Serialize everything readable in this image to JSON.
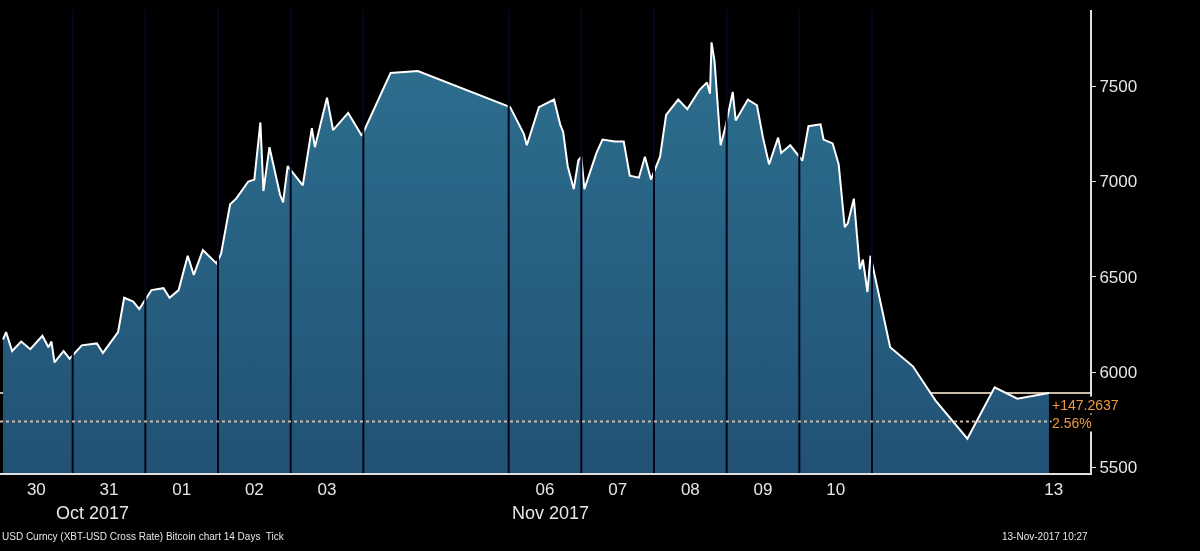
{
  "chart_data": {
    "type": "area",
    "x": [
      "2017-10-30T01:00",
      "2017-10-30T02:00",
      "2017-10-30T04:00",
      "2017-10-30T07:00",
      "2017-10-30T10:00",
      "2017-10-30T14:00",
      "2017-10-30T16:00",
      "2017-10-30T17:00",
      "2017-10-30T18:00",
      "2017-10-30T21:00",
      "2017-10-30T23:00",
      "2017-10-31T03:00",
      "2017-10-31T08:00",
      "2017-10-31T10:00",
      "2017-10-31T15:00",
      "2017-10-31T17:00",
      "2017-10-31T20:00",
      "2017-10-31T22:00",
      "2017-11-01T02:00",
      "2017-11-01T06:00",
      "2017-11-01T08:00",
      "2017-11-01T11:00",
      "2017-11-01T14:00",
      "2017-11-01T16:00",
      "2017-11-01T19:00",
      "2017-11-01T23:30",
      "2017-11-02T01:00",
      "2017-11-02T04:00",
      "2017-11-02T06:00",
      "2017-11-02T10:00",
      "2017-11-02T12:00",
      "2017-11-02T14:00",
      "2017-11-02T15:00",
      "2017-11-02T17:00",
      "2017-11-02T20:30",
      "2017-11-02T21:30",
      "2017-11-02T23:00",
      "2017-11-03T04:00",
      "2017-11-03T07:00",
      "2017-11-03T08:00",
      "2017-11-03T12:00",
      "2017-11-03T14:00",
      "2017-11-03T19:00",
      "2017-11-03T23:30",
      "2017-11-04T09:00",
      "2017-11-04T18:00",
      "2017-11-06T00:30",
      "2017-11-06T05:00",
      "2017-11-06T06:00",
      "2017-11-06T10:00",
      "2017-11-06T15:00",
      "2017-11-06T17:00",
      "2017-11-06T18:00",
      "2017-11-06T19:30",
      "2017-11-06T21:30",
      "2017-11-06T23:00",
      "2017-11-07T00:00",
      "2017-11-07T01:00",
      "2017-11-07T05:00",
      "2017-11-07T07:00",
      "2017-11-07T11:00",
      "2017-11-07T14:00",
      "2017-11-07T16:00",
      "2017-11-07T19:00",
      "2017-11-07T21:00",
      "2017-11-07T23:00",
      "2017-11-08T02:00",
      "2017-11-08T04:00",
      "2017-11-08T08:00",
      "2017-11-08T11:00",
      "2017-11-08T15:00",
      "2017-11-08T17:30",
      "2017-11-08T18:30",
      "2017-11-08T19:00",
      "2017-11-08T20:00",
      "2017-11-08T22:00",
      "2017-11-08T23:30",
      "2017-11-09T02:00",
      "2017-11-09T03:00",
      "2017-11-09T07:00",
      "2017-11-09T10:00",
      "2017-11-09T12:00",
      "2017-11-09T14:00",
      "2017-11-09T17:00",
      "2017-11-09T18:00",
      "2017-11-09T21:00",
      "2017-11-10T01:00",
      "2017-11-10T03:00",
      "2017-11-10T07:00",
      "2017-11-10T08:00",
      "2017-11-10T11:00",
      "2017-11-10T13:00",
      "2017-11-10T15:00",
      "2017-11-10T16:00",
      "2017-11-10T18:00",
      "2017-11-10T20:00",
      "2017-11-10T21:00",
      "2017-11-10T22:30",
      "2017-11-10T23:30",
      "2017-11-11T06:00",
      "2017-11-11T13:30",
      "2017-11-11T21:00",
      "2017-11-12T07:30",
      "2017-11-12T16:30",
      "2017-11-13T00:00",
      "2017-11-13T10:27"
    ],
    "series": [
      {
        "color": "#ffffff",
        "values": [
          6170,
          6210,
          6110,
          6160,
          6120,
          6190,
          6130,
          6160,
          6050,
          6110,
          6070,
          6140,
          6150,
          6100,
          6210,
          6390,
          6370,
          6330,
          6430,
          6440,
          6390,
          6430,
          6610,
          6510,
          6640,
          6570,
          6620,
          6880,
          6910,
          7000,
          7010,
          7310,
          6950,
          7180,
          6930,
          6890,
          7080,
          6980,
          7280,
          7180,
          7440,
          7270,
          7360,
          7240,
          7570,
          7580,
          7390,
          7250,
          7190,
          7390,
          7430,
          7300,
          7260,
          7080,
          6960,
          7110,
          7130,
          6960,
          7150,
          7220,
          7210,
          7210,
          7030,
          7020,
          7130,
          7010,
          7130,
          7350,
          7430,
          7380,
          7480,
          7520,
          7460,
          7730,
          7630,
          7190,
          7280,
          7470,
          7320,
          7430,
          7400,
          7230,
          7090,
          7230,
          7150,
          7190,
          7110,
          7290,
          7300,
          7220,
          7200,
          7090,
          6760,
          6780,
          6910,
          6540,
          6590,
          6420,
          6610,
          6130,
          6030,
          5850,
          5650,
          5920,
          5860,
          5890
        ]
      }
    ],
    "xlim": [
      "2017-10-30",
      "2017-11-14"
    ],
    "xticks": [
      {
        "value": "2017-10-30T12:00",
        "label": "30"
      },
      {
        "value": "2017-10-31T12:00",
        "label": "31"
      },
      {
        "value": "2017-11-01T12:00",
        "label": "01"
      },
      {
        "value": "2017-11-02T12:00",
        "label": "02"
      },
      {
        "value": "2017-11-03T12:00",
        "label": "03"
      },
      {
        "value": "2017-11-06T12:00",
        "label": "06"
      },
      {
        "value": "2017-11-07T12:00",
        "label": "07"
      },
      {
        "value": "2017-11-08T12:00",
        "label": "08"
      },
      {
        "value": "2017-11-09T12:00",
        "label": "09"
      },
      {
        "value": "2017-11-10T12:00",
        "label": "10"
      },
      {
        "value": "2017-11-13T12:00",
        "label": "13"
      }
    ],
    "ylim": [
      5470,
      7900
    ],
    "yticks": [
      5500,
      6000,
      6500,
      7000,
      7500
    ],
    "ref_lines": [
      {
        "axis": "x",
        "value": "2017-10-31",
        "color": "#03061c"
      },
      {
        "axis": "x",
        "value": "2017-11-01",
        "color": "#03061c"
      },
      {
        "axis": "x",
        "value": "2017-11-02",
        "color": "#03061c"
      },
      {
        "axis": "x",
        "value": "2017-11-03",
        "color": "#03061c"
      },
      {
        "axis": "x",
        "value": "2017-11-04",
        "color": "#03061c"
      },
      {
        "axis": "x",
        "value": "2017-11-06",
        "color": "#03061c"
      },
      {
        "axis": "x",
        "value": "2017-11-07",
        "color": "#03061c"
      },
      {
        "axis": "x",
        "value": "2017-11-08",
        "color": "#03061c"
      },
      {
        "axis": "x",
        "value": "2017-11-09",
        "color": "#03061c"
      },
      {
        "axis": "x",
        "value": "2017-11-10",
        "color": "#03061c"
      },
      {
        "axis": "x",
        "value": "2017-11-11",
        "color": "#03061c"
      },
      {
        "axis": "y",
        "value": 5890,
        "color": "#c9bba8",
        "line_style": "solid"
      },
      {
        "axis": "y",
        "value": 5740,
        "color": "#c9bba8",
        "line_style": "dotted"
      }
    ],
    "annotations": [
      "Oct 2017",
      "Nov 2017",
      "USD Curncy (XBT-USD Cross Rate) Bitcoin chart 14 Days  Tick",
      "13-Nov-2017 10:27",
      "+147.2637",
      "2.56%"
    ]
  }
}
